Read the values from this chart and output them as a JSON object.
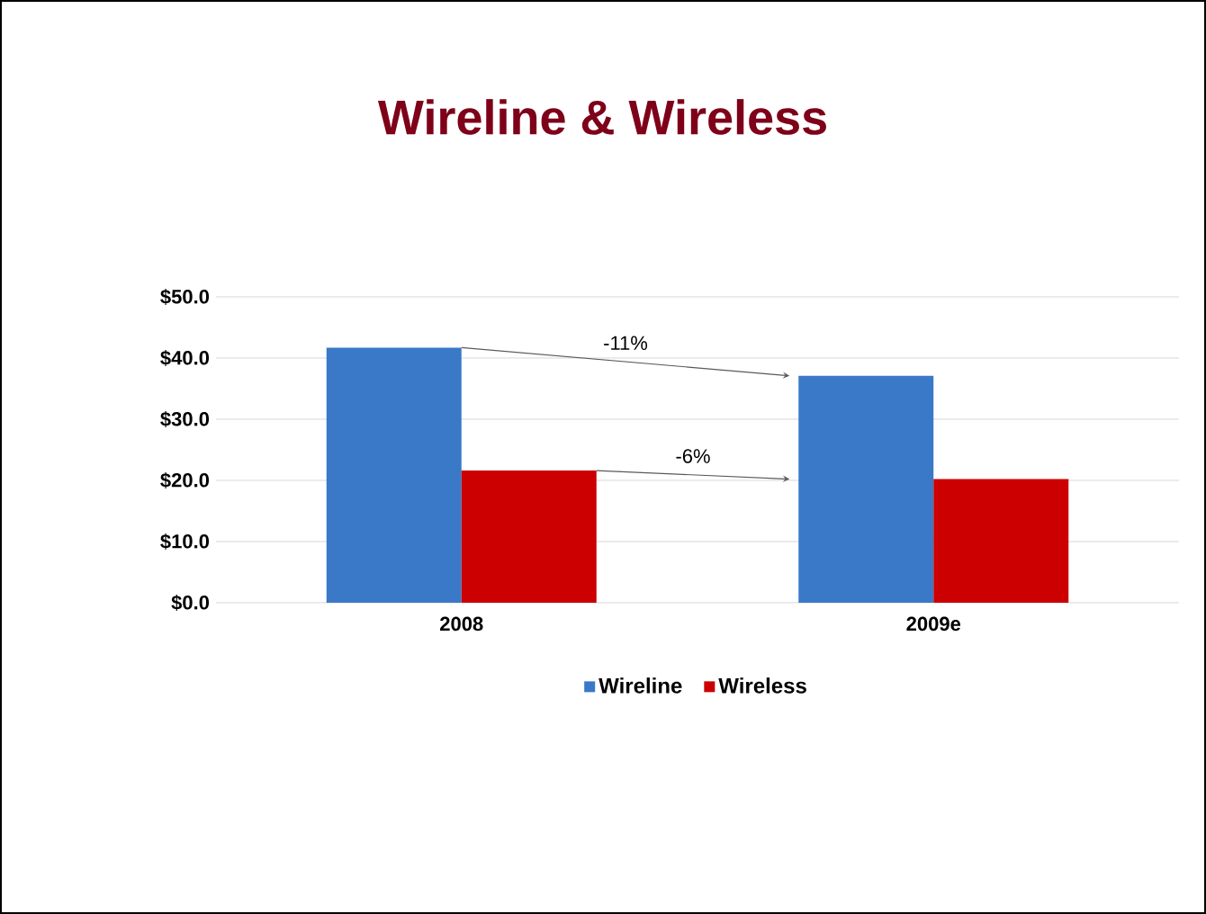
{
  "chart_data": {
    "type": "bar",
    "title": "Wireline & Wireless",
    "categories": [
      "2008",
      "2009e"
    ],
    "series": [
      {
        "name": "Wireline",
        "color": "#3a78c8",
        "values": [
          41.7,
          37.1
        ]
      },
      {
        "name": "Wireless",
        "color": "#cc0000",
        "values": [
          21.6,
          20.2
        ]
      }
    ],
    "ylim": [
      0,
      50
    ],
    "yticks": [
      {
        "value": 0,
        "label": "$0.0"
      },
      {
        "value": 10,
        "label": "$10.0"
      },
      {
        "value": 20,
        "label": "$20.0"
      },
      {
        "value": 30,
        "label": "$30.0"
      },
      {
        "value": 40,
        "label": "$40.0"
      },
      {
        "value": 50,
        "label": "$50.0"
      }
    ],
    "grid": "y",
    "legend": "bottom",
    "annotations": [
      "-11%",
      "-6%"
    ]
  }
}
